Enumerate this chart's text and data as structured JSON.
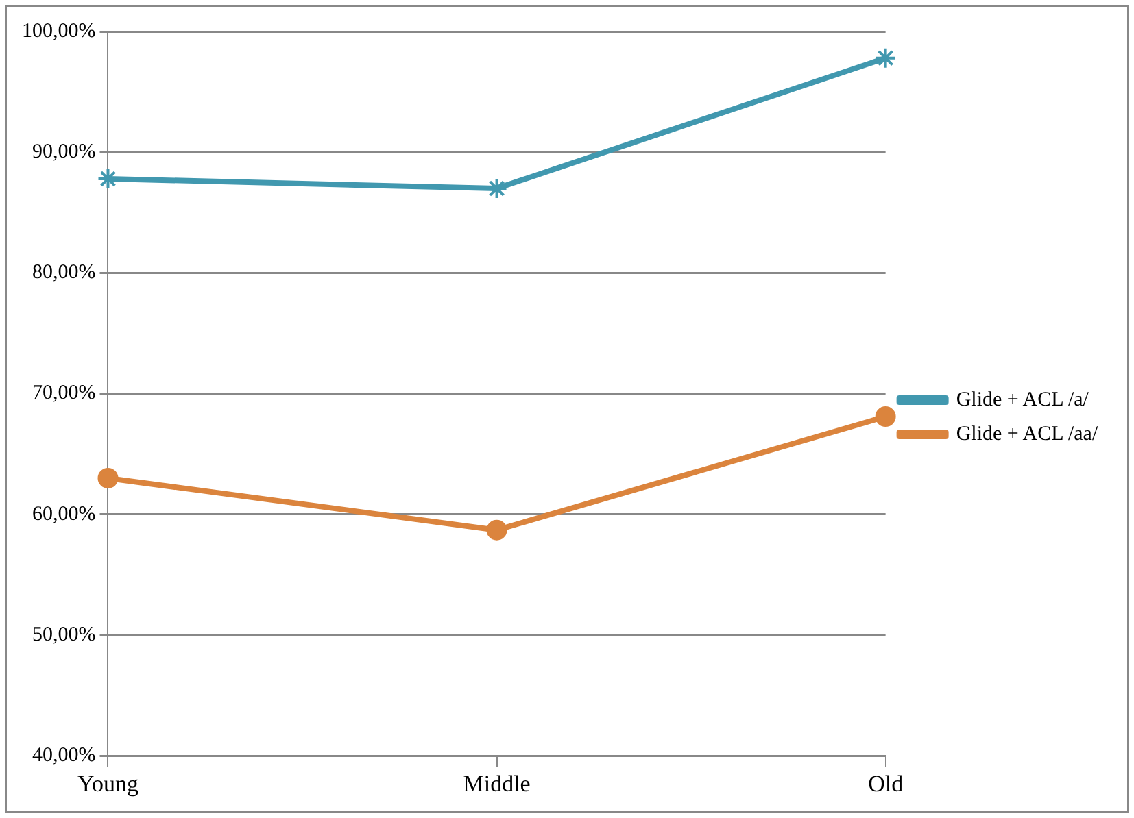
{
  "chart_data": {
    "type": "line",
    "categories": [
      "Young",
      "Middle",
      "Old"
    ],
    "series": [
      {
        "name": "Glide + ACL /a/",
        "color": "#4198af",
        "marker": "cross",
        "values": [
          87.8,
          87.0,
          97.8
        ]
      },
      {
        "name": "Glide + ACL /aa/",
        "color": "#db843d",
        "marker": "circle",
        "values": [
          63.0,
          58.7,
          68.1
        ]
      }
    ],
    "ylim": [
      40,
      100
    ],
    "yticks": [
      {
        "value": 40,
        "label": "40,00%"
      },
      {
        "value": 50,
        "label": "50,00%"
      },
      {
        "value": 60,
        "label": "60,00%"
      },
      {
        "value": 70,
        "label": "70,00%"
      },
      {
        "value": 80,
        "label": "80,00%"
      },
      {
        "value": 90,
        "label": "90,00%"
      },
      {
        "value": 100,
        "label": "100,00%"
      }
    ],
    "grid": "y",
    "legend": "right",
    "line_style": "solid"
  }
}
